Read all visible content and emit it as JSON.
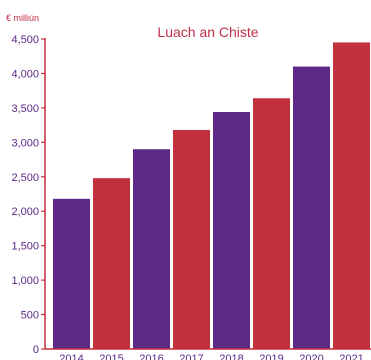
{
  "colors": {
    "purple": "#5c2a86",
    "red": "#c22f3d",
    "axis": "#c22f3d",
    "text": "#5b2a86"
  },
  "chart_data": {
    "type": "bar",
    "title": "Luach an Chiste",
    "unit_label": "€ milliún",
    "categories": [
      "2014",
      "2015",
      "2016",
      "2017",
      "2018",
      "2019",
      "2020",
      "2021"
    ],
    "values": [
      2180,
      2480,
      2900,
      3180,
      3440,
      3640,
      4100,
      4450
    ],
    "bar_colors": [
      "purple",
      "red",
      "purple",
      "red",
      "purple",
      "red",
      "purple",
      "red"
    ],
    "ylim": [
      0,
      4500
    ],
    "yticks": [
      0,
      500,
      1000,
      1500,
      2000,
      2500,
      3000,
      3500,
      4000,
      4500
    ],
    "ytick_labels": [
      "0",
      "500",
      "1,000",
      "1,500",
      "2,000",
      "2,500",
      "3,000",
      "3,500",
      "4,000",
      "4,500"
    ],
    "grid": false,
    "legend": "none"
  }
}
